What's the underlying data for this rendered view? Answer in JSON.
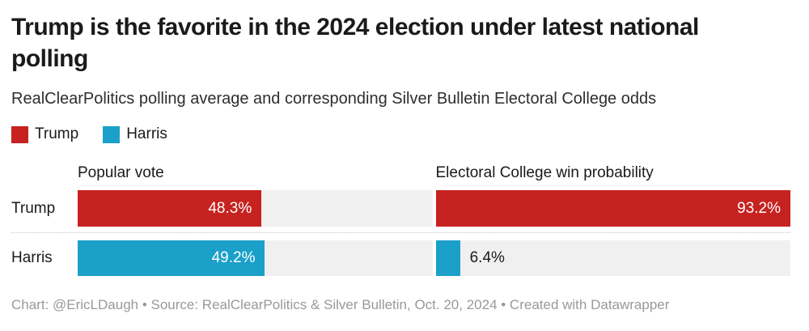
{
  "header": {
    "title": "Trump is the favorite in the 2024 election under latest national polling",
    "subtitle": "RealClearPolitics polling average and corresponding Silver Bulletin Electoral College odds"
  },
  "legend": {
    "items": [
      {
        "label": "Trump",
        "color": "#c62220"
      },
      {
        "label": "Harris",
        "color": "#1ba0c9"
      }
    ]
  },
  "chart_data": {
    "type": "bar",
    "title": "Trump is the favorite in the 2024 election under latest national polling",
    "subtitle": "RealClearPolitics polling average and corresponding Silver Bulletin Electoral College odds",
    "categories": [
      "Trump",
      "Harris"
    ],
    "series": [
      {
        "name": "Popular vote",
        "values": [
          48.3,
          49.2
        ],
        "labels": [
          "48.3%",
          "49.2%"
        ]
      },
      {
        "name": "Electoral College win probability",
        "values": [
          93.2,
          6.4
        ],
        "labels": [
          "93.2%",
          "6.4%"
        ]
      }
    ],
    "colors": {
      "Trump": "#c62220",
      "Harris": "#1ba0c9"
    },
    "track_color": "#f0f0f0",
    "scale_max": 93.2,
    "legend_position": "top-left",
    "grid": false
  },
  "footer": {
    "text": "Chart: @EricLDaugh • Source: RealClearPolitics & Silver Bulletin, Oct. 20, 2024 • Created with Datawrapper"
  }
}
